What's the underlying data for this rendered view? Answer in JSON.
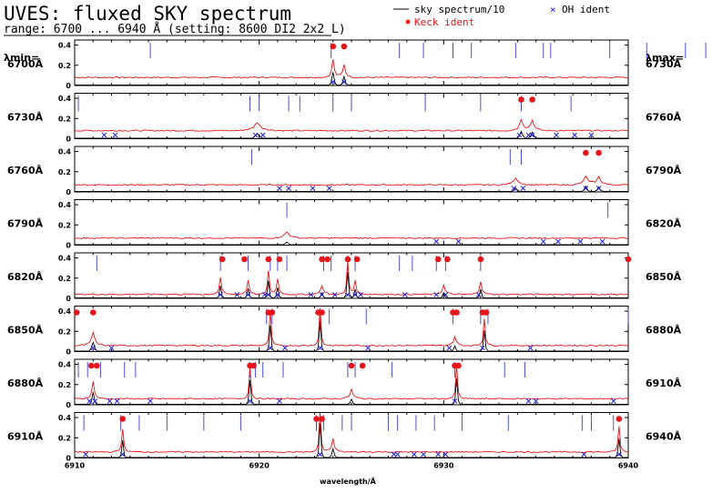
{
  "header": {
    "title": "UVES: fluxed SKY spectrum",
    "subtitle": "range: 6700 ... 6940 Å (setting: 8600 DI2 2x2 L)"
  },
  "legend": {
    "sky": "sky spectrum/10",
    "keck": "Keck ident",
    "oh": "OH ident"
  },
  "side_labels": {
    "lmin": "λmin=",
    "lmax": "λmax="
  },
  "colors": {
    "sky": "#000000",
    "model": "#e8161b",
    "keck": "#e8161b",
    "oh": "#2222dd",
    "line": "#3a3ad8"
  },
  "chart_data": {
    "type": "line",
    "xlabel": "wavelength/Å",
    "yticks": [
      "0",
      "0.2",
      "0.4"
    ],
    "ylim": [
      0,
      0.45
    ],
    "grid": false,
    "bottom_xticks": [
      "6910",
      "6920",
      "6930",
      "6940"
    ],
    "panels": [
      {
        "lmin": "6700Å",
        "lmax": "6730Å",
        "start": 6700,
        "keck": [
          6714,
          6714.6
        ],
        "oh": [
          6714.0,
          6714.6,
          6739.5,
          6739.8
        ],
        "tall_lines": [
          6704.1,
          6713.9,
          6717.6,
          6718.9,
          6720.5,
          6721.5,
          6723.9,
          6725.4,
          6725.8,
          6729.0,
          6731.0,
          6733.1,
          6734.2,
          6739.0
        ],
        "peaks": [
          {
            "x": 6714.0,
            "h": 0.15,
            "w": 0.08
          },
          {
            "x": 6714.6,
            "h": 0.1,
            "w": 0.08
          }
        ],
        "base": 0.08
      },
      {
        "lmin": "6730Å",
        "lmax": "6760Å",
        "start": 6730,
        "keck": [
          6754.2,
          6754.8
        ],
        "oh": [
          6731.6,
          6732.2,
          6739.8,
          6740.2,
          6754.1,
          6754.6,
          6754.8,
          6756.1,
          6757.1,
          6758.0
        ],
        "tall_lines": [
          6730.2,
          6739.5,
          6740.0,
          6741.6,
          6742.2,
          6744.0,
          6745.0,
          6749.0,
          6752.0,
          6754.2,
          6756.9
        ],
        "peaks": [
          {
            "x": 6739.9,
            "h": 0.05,
            "w": 0.15
          },
          {
            "x": 6754.2,
            "h": 0.08,
            "w": 0.1
          },
          {
            "x": 6754.8,
            "h": 0.07,
            "w": 0.1
          }
        ],
        "base": 0.08
      },
      {
        "lmin": "6760Å",
        "lmax": "6790Å",
        "start": 6760,
        "keck": [
          6787.7,
          6788.4
        ],
        "oh": [
          6771.1,
          6771.6,
          6772.9,
          6773.8,
          6783.8,
          6784.3,
          6787.7,
          6788.4
        ],
        "tall_lines": [
          6769.6,
          6783.6,
          6784.2
        ],
        "peaks": [
          {
            "x": 6783.9,
            "h": 0.04,
            "w": 0.1
          },
          {
            "x": 6787.7,
            "h": 0.06,
            "w": 0.1
          },
          {
            "x": 6788.4,
            "h": 0.05,
            "w": 0.1
          }
        ],
        "base": 0.07
      },
      {
        "lmin": "6790Å",
        "lmax": "6820Å",
        "start": 6790,
        "keck": [],
        "oh": [
          6809.6,
          6810.8,
          6815.4,
          6816.2,
          6817.4,
          6818.6
        ],
        "tall_lines": [
          6801.5,
          6818.9
        ],
        "peaks": [
          {
            "x": 6801.5,
            "h": 0.03,
            "w": 0.1
          }
        ],
        "base": 0.07
      },
      {
        "lmin": "6820Å",
        "lmax": "6850Å",
        "start": 6820,
        "keck": [
          6828.0,
          6829.2,
          6830.5,
          6831.1,
          6833.4,
          6833.7,
          6834.8,
          6835.3,
          6839.7,
          6840.2,
          6842.0,
          6850.0
        ],
        "oh": [
          6827.9,
          6829.4,
          6830.5,
          6831.0,
          6833.4,
          6834.1,
          6834.8,
          6835.2,
          6839.6,
          6840.1,
          6841.9,
          6828.8,
          6830.3,
          6832.8,
          6835.5,
          6837.9
        ],
        "tall_lines": [
          6821.2,
          6827.9,
          6829.4,
          6830.6,
          6831.0,
          6831.5,
          6833.5,
          6833.9,
          6834.8,
          6835.2,
          6837.6,
          6838.3,
          6839.6,
          6840.1,
          6842.0
        ],
        "peaks": [
          {
            "x": 6827.9,
            "h": 0.14,
            "w": 0.07
          },
          {
            "x": 6829.4,
            "h": 0.11,
            "w": 0.07
          },
          {
            "x": 6830.5,
            "h": 0.2,
            "w": 0.07
          },
          {
            "x": 6831.0,
            "h": 0.12,
            "w": 0.07
          },
          {
            "x": 6833.4,
            "h": 0.06,
            "w": 0.07
          },
          {
            "x": 6834.8,
            "h": 0.3,
            "w": 0.07
          },
          {
            "x": 6835.2,
            "h": 0.1,
            "w": 0.07
          },
          {
            "x": 6840.0,
            "h": 0.06,
            "w": 0.07
          },
          {
            "x": 6842.0,
            "h": 0.1,
            "w": 0.07
          }
        ],
        "base": 0.04
      },
      {
        "lmin": "6850Å",
        "lmax": "6880Å",
        "start": 6850,
        "keck": [
          6850.1,
          6851.0,
          6860.5,
          6860.7,
          6863.2,
          6863.4,
          6870.5,
          6870.7,
          6872.1,
          6872.3
        ],
        "oh": [
          6851.0,
          6860.6,
          6863.3,
          6872.1,
          6852.0,
          6861.4,
          6865.9,
          6870.3,
          6874.7
        ],
        "tall_lines": [
          6860.4,
          6860.7,
          6863.3,
          6863.8,
          6865.8,
          6870.5,
          6872.0,
          6872.4,
          6880.0
        ],
        "peaks": [
          {
            "x": 6851.0,
            "h": 0.1,
            "w": 0.1
          },
          {
            "x": 6860.6,
            "h": 0.3,
            "w": 0.07
          },
          {
            "x": 6863.3,
            "h": 0.34,
            "w": 0.07
          },
          {
            "x": 6870.6,
            "h": 0.06,
            "w": 0.07
          },
          {
            "x": 6872.2,
            "h": 0.24,
            "w": 0.07
          }
        ],
        "base": 0.06
      },
      {
        "lmin": "6880Å",
        "lmax": "6910Å",
        "start": 6880,
        "keck": [
          6880.9,
          6881.2,
          6889.5,
          6889.7,
          6895.0,
          6895.6,
          6900.6,
          6900.8
        ],
        "oh": [
          6880.8,
          6881.1,
          6881.9,
          6882.3,
          6884.1,
          6889.5,
          6891.1,
          6900.6,
          6904.6,
          6905.0,
          6909.2
        ],
        "tall_lines": [
          6880.2,
          6880.7,
          6881.4,
          6882.7,
          6883.3,
          6889.5,
          6889.8,
          6890.2,
          6891.3,
          6894.8,
          6895.2,
          6897.2,
          6900.6,
          6903.3,
          6904.4
        ],
        "peaks": [
          {
            "x": 6881.0,
            "h": 0.14,
            "w": 0.08
          },
          {
            "x": 6889.5,
            "h": 0.28,
            "w": 0.07
          },
          {
            "x": 6895.0,
            "h": 0.06,
            "w": 0.08
          },
          {
            "x": 6900.7,
            "h": 0.3,
            "w": 0.07
          }
        ],
        "base": 0.06
      },
      {
        "lmin": "6910Å",
        "lmax": "6940Å",
        "start": 6910,
        "keck": [
          6912.6,
          6923.1,
          6923.4,
          6939.5
        ],
        "oh": [
          6910.6,
          6912.6,
          6923.3,
          6927.3,
          6927.5,
          6928.4,
          6928.9,
          6929.7,
          6930.1,
          6937.6,
          6939.5
        ],
        "tall_lines": [
          6910.5,
          6912.5,
          6913.5,
          6915.0,
          6917.0,
          6919.0,
          6923.1,
          6923.5,
          6924.5,
          6925.0,
          6927.0,
          6927.5,
          6928.5,
          6929.5,
          6931.0,
          6933.5,
          6937.5,
          6938.0,
          6939.2
        ],
        "peaks": [
          {
            "x": 6912.6,
            "h": 0.2,
            "w": 0.07
          },
          {
            "x": 6923.3,
            "h": 0.4,
            "w": 0.07
          },
          {
            "x": 6924.0,
            "h": 0.1,
            "w": 0.08
          },
          {
            "x": 6939.5,
            "h": 0.22,
            "w": 0.07
          }
        ],
        "base": 0.06
      }
    ]
  }
}
